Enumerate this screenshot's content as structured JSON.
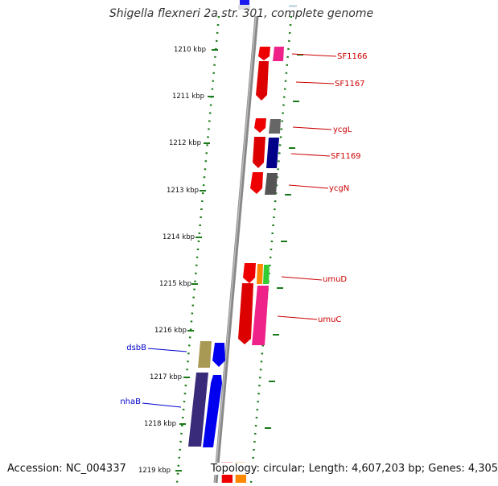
{
  "title": "Shigella flexneri 2a str. 301, complete genome",
  "accession": "Accession: NC_004337",
  "summary": "Topology: circular; Length: 4,607,203 bp; Genes: 4,305",
  "ticks": [
    "1210 kbp",
    "1211 kbp",
    "1212 kbp",
    "1213 kbp",
    "1214 kbp",
    "1215 kbp",
    "1216 kbp",
    "1217 kbp",
    "1218 kbp",
    "1219 kbp"
  ],
  "gene_labels_right": [
    "SF1166",
    "SF1167",
    "ycgL",
    "SF1169",
    "ycgN",
    "umuD",
    "umuC"
  ],
  "gene_labels_left": [
    "dsbB",
    "nhaB"
  ],
  "colors": {
    "right_label": "#cc0000",
    "left_label": "#0000cc",
    "tick_mark": "#1a7a1a",
    "backbone": "#888888"
  }
}
